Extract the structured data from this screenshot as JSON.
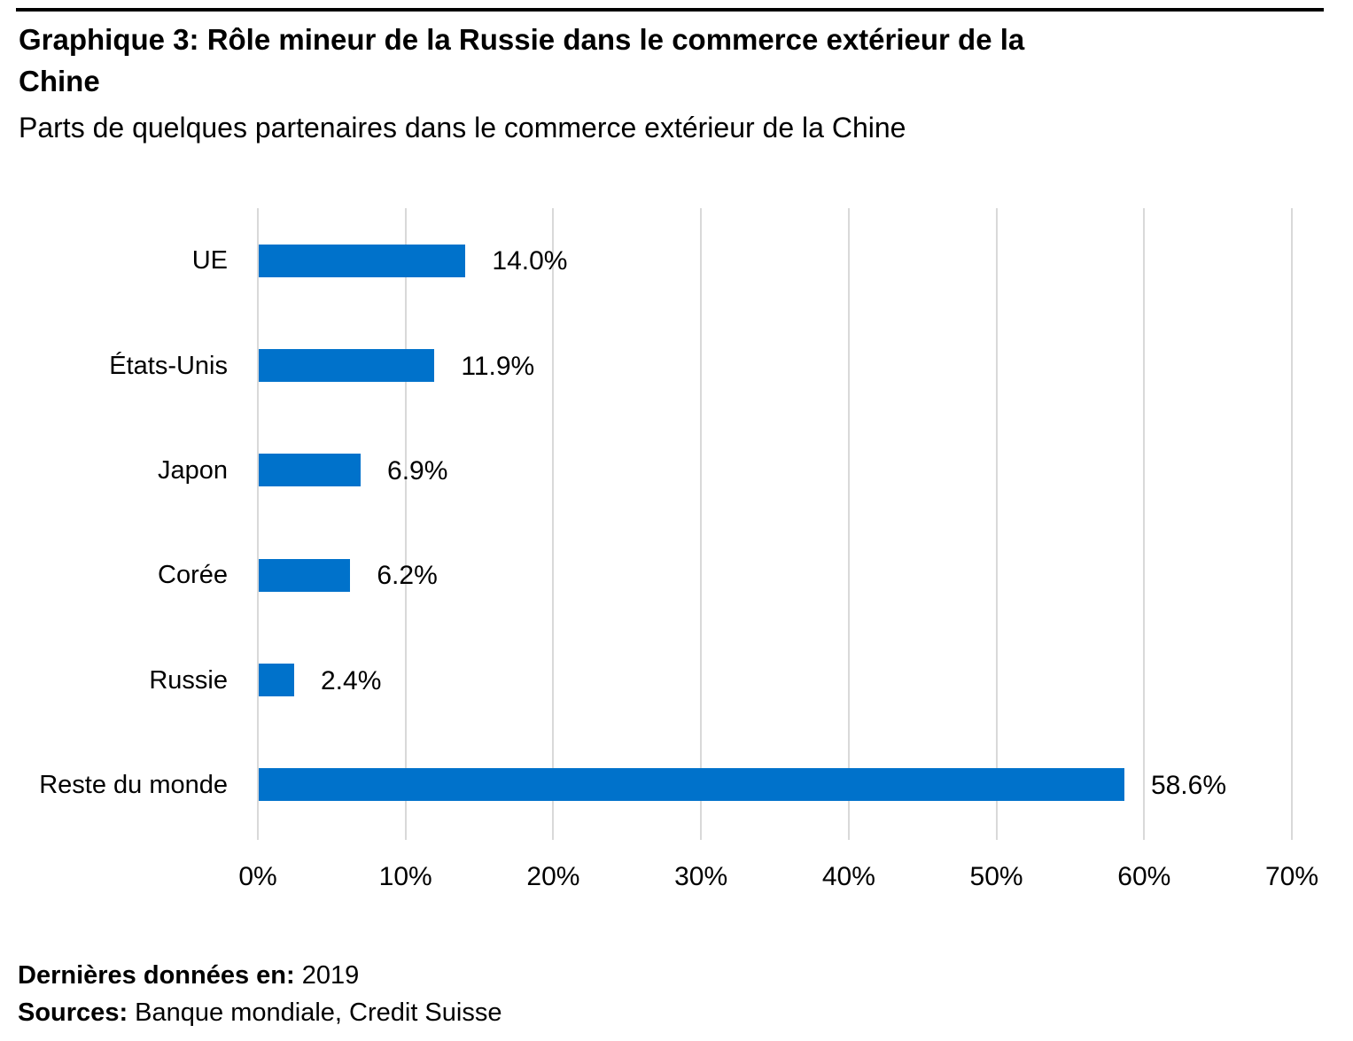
{
  "header": {
    "title_line1": "Graphique 3: Rôle mineur de la Russie dans le commerce extérieur de la",
    "title_line2": "Chine",
    "subtitle": "Parts de quelques partenaires dans le commerce extérieur de la Chine"
  },
  "chart_data": {
    "type": "bar",
    "orientation": "horizontal",
    "title": "Graphique 3: Rôle mineur de la Russie dans le commerce extérieur de la Chine",
    "subtitle": "Parts de quelques partenaires dans le commerce extérieur de la Chine",
    "categories": [
      "UE",
      "États-Unis",
      "Japon",
      "Corée",
      "Russie",
      "Reste du monde"
    ],
    "values": [
      14.0,
      11.9,
      6.9,
      6.2,
      2.4,
      58.6
    ],
    "value_labels": [
      "14.0%",
      "11.9%",
      "6.9%",
      "6.2%",
      "2.4%",
      "58.6%"
    ],
    "x_ticks": [
      "0%",
      "10%",
      "20%",
      "30%",
      "40%",
      "50%",
      "60%",
      "70%"
    ],
    "x_tick_values": [
      0,
      10,
      20,
      30,
      40,
      50,
      60,
      70
    ],
    "xlim": [
      0,
      70
    ],
    "grid": "vertical-gridlines",
    "legend": "none",
    "bar_color": "#0072CB",
    "gridline_color": "#D9D9D9",
    "text_color": "#000000"
  },
  "footer": {
    "last_data_label": "Dernières données en:",
    "last_data_value": "2019",
    "sources_label": "Sources:",
    "sources_value": "Banque mondiale, Credit Suisse"
  }
}
